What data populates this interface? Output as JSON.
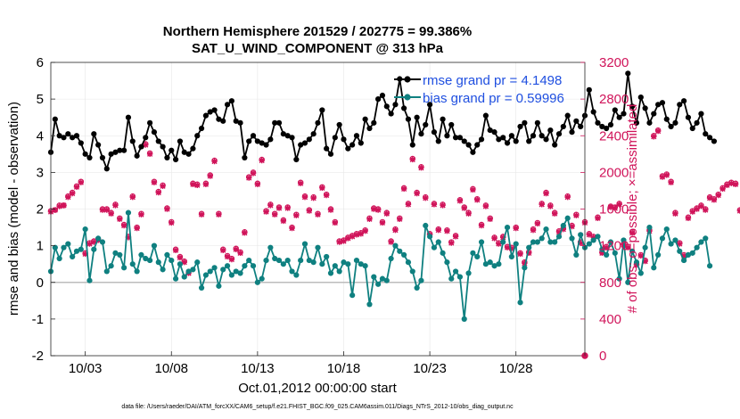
{
  "chart_data": {
    "type": "line",
    "title_line1": "Northern Hemisphere 201529 / 202775 = 99.386%",
    "title_line2": "SAT_U_WIND_COMPONENT @ 313 hPa",
    "xlabel": "Oct.01,2012 00:00:00 start",
    "ylabel_left": "rmse and bias (model - observation)",
    "ylabel_right": "# of obs: o=possible; ×=assimilated",
    "footer": "data file: /Users/raeder/DAI/ATM_forcXX/CAM6_setup/f.e21.FHIST_BGC.f09_025.CAM6assim.011/Diags_NTrS_2012-10/obs_diag_output.nc",
    "xlim": [
      1.0,
      32.0
    ],
    "ylim_left": [
      -2,
      6
    ],
    "ylim_right": [
      0,
      3200
    ],
    "x_ticks": [
      3,
      8,
      13,
      18,
      23,
      28
    ],
    "x_tick_labels": [
      "10/03",
      "10/08",
      "10/13",
      "10/18",
      "10/23",
      "10/28"
    ],
    "y_left_ticks": [
      "-2",
      "-1",
      "0",
      "1",
      "2",
      "3",
      "4",
      "5",
      "6"
    ],
    "y_right_ticks": [
      "0",
      "400",
      "800",
      "1200",
      "1600",
      "2000",
      "2400",
      "2800",
      "3200"
    ],
    "legend": {
      "rmse_label": "rmse grand pr = 4.1498",
      "bias_label": "bias grand pr = 0.59996",
      "placement": "top-right"
    },
    "colors": {
      "rmse": "#000000",
      "bias": "#0f8080",
      "obs": "#d0145a",
      "zero_line": "#bdbdbd",
      "legend_text": "#1f4fe0"
    },
    "time_step": 0.25,
    "rmse": [
      3.55,
      4.45,
      4.0,
      3.95,
      4.05,
      3.95,
      4.0,
      3.8,
      3.5,
      3.4,
      4.05,
      3.75,
      3.4,
      3.1,
      3.5,
      3.55,
      3.6,
      3.6,
      4.5,
      3.85,
      3.45,
      3.7,
      3.95,
      4.35,
      4.1,
      3.85,
      3.7,
      3.4,
      3.6,
      3.35,
      3.85,
      3.55,
      3.5,
      3.65,
      4.0,
      4.2,
      4.55,
      4.65,
      4.7,
      4.45,
      4.4,
      4.85,
      4.95,
      4.4,
      4.35,
      3.4,
      3.85,
      4.0,
      3.85,
      3.8,
      3.75,
      3.9,
      4.35,
      4.35,
      4.05,
      4.0,
      3.95,
      3.35,
      3.75,
      3.8,
      3.9,
      4.05,
      4.35,
      4.7,
      3.65,
      3.5,
      3.95,
      4.3,
      3.9,
      3.65,
      3.75,
      4.0,
      3.8,
      4.45,
      4.2,
      4.35,
      5.0,
      5.1,
      4.8,
      4.6,
      4.85,
      5.55,
      4.75,
      4.45,
      3.75,
      4.5,
      4.05,
      4.3,
      4.85,
      4.1,
      3.85,
      4.45,
      4.0,
      4.3,
      3.95,
      3.95,
      3.85,
      3.75,
      3.55,
      3.75,
      3.9,
      4.55,
      4.15,
      4.1,
      3.9,
      3.95,
      3.8,
      4.0,
      3.85,
      4.25,
      4.35,
      3.85,
      4.0,
      4.35,
      4.0,
      3.9,
      4.15,
      3.75,
      4.05,
      4.25,
      4.55,
      4.1,
      4.4,
      4.25,
      4.55,
      5.25,
      4.65,
      4.35,
      4.25,
      4.2,
      4.3,
      4.7,
      4.5,
      4.6,
      5.7,
      4.8,
      4.35,
      5.05,
      4.75,
      4.35,
      4.6,
      4.85,
      4.9,
      4.45,
      4.25,
      4.35,
      4.85,
      4.95,
      4.5,
      4.2,
      4.35,
      4.6,
      4.05,
      3.95,
      3.85
    ],
    "bias": [
      0.3,
      0.95,
      0.65,
      0.95,
      1.05,
      0.7,
      0.85,
      0.9,
      1.45,
      0.05,
      0.9,
      1.2,
      1.1,
      0.3,
      0.45,
      0.8,
      0.75,
      0.4,
      1.9,
      0.5,
      0.3,
      0.75,
      0.65,
      0.6,
      1.0,
      0.55,
      0.35,
      0.75,
      0.6,
      0.1,
      0.5,
      0.15,
      0.3,
      0.35,
      0.55,
      -0.15,
      0.2,
      0.3,
      0.4,
      -0.1,
      0.35,
      0.45,
      0.2,
      0.3,
      0.25,
      0.45,
      0.6,
      0.45,
      0.0,
      0.1,
      0.6,
      0.95,
      0.65,
      0.6,
      0.5,
      0.6,
      0.3,
      0.2,
      0.6,
      1.05,
      0.6,
      0.55,
      0.95,
      0.5,
      0.7,
      0.25,
      0.45,
      0.3,
      0.55,
      0.5,
      -0.35,
      0.6,
      0.5,
      0.45,
      -0.6,
      0.15,
      -0.05,
      0.1,
      0.05,
      0.65,
      1.0,
      0.85,
      0.75,
      0.55,
      0.3,
      -0.15,
      0.05,
      1.55,
      1.25,
      0.95,
      1.1,
      0.8,
      0.55,
      0.1,
      0.3,
      0.15,
      -1.0,
      0.25,
      0.8,
      0.7,
      1.1,
      0.5,
      0.55,
      0.45,
      0.5,
      1.1,
      1.5,
      0.7,
      1.05,
      -0.55,
      0.4,
      0.95,
      1.1,
      1.1,
      1.2,
      1.45,
      1.1,
      1.1,
      1.25,
      1.55,
      1.75,
      1.2,
      0.75,
      1.3,
      0.95,
      1.05,
      1.15,
      1.25,
      0.9,
      0.75,
      1.1,
      0.8,
      0.1,
      1.15,
      0.0,
      0.85,
      0.55,
      0.25,
      0.95,
      1.5,
      0.4,
      0.75,
      1.2,
      1.45,
      1.05,
      1.15,
      0.85,
      0.6,
      0.75,
      0.8,
      0.95,
      1.1,
      1.2,
      0.45
    ],
    "obs_possible": [
      1580,
      1590,
      1640,
      1640,
      1740,
      1780,
      1850,
      1900,
      1120,
      1230,
      1250,
      1270,
      1600,
      1600,
      1560,
      1650,
      1500,
      1430,
      1300,
      1740,
      1400,
      1550,
      2310,
      2210,
      1900,
      1790,
      1860,
      1610,
      1460,
      1160,
      1080,
      1030,
      910,
      1880,
      1870,
      1550,
      1880,
      1970,
      2130,
      1550,
      1160,
      1090,
      1060,
      1170,
      1130,
      1350,
      1950,
      2000,
      1880,
      2140,
      1580,
      1650,
      1550,
      1620,
      1480,
      1620,
      1400,
      1540,
      1890,
      1740,
      1590,
      1730,
      1550,
      1840,
      1760,
      1600,
      1460,
      1250,
      1260,
      1290,
      1310,
      1330,
      1340,
      1370,
      1500,
      1610,
      1600,
      1460,
      1560,
      1250,
      1380,
      1500,
      1830,
      1660,
      2150,
      1780,
      2060,
      1730,
      1330,
      1660,
      1380,
      1650,
      1370,
      1240,
      1310,
      1700,
      1620,
      1560,
      1820,
      1710,
      1430,
      1640,
      1500,
      1290,
      1230,
      1300,
      1190,
      1180,
      1400,
      1120,
      1020,
      1130,
      1380,
      1450,
      1660,
      1780,
      1640,
      1560,
      1360,
      1390,
      1740,
      1420,
      1540,
      1240,
      1460,
      1330,
      1300,
      1510,
      1130,
      1190,
      1630,
      1620,
      1660,
      1220,
      1190,
      1350,
      1000,
      1100,
      1040,
      1370,
      2400,
      2460,
      1960,
      1980,
      1900,
      1560,
      1230,
      1100,
      1510,
      1580,
      1610,
      1640,
      1600,
      1730,
      1710,
      1760,
      1830,
      1870,
      1890,
      1880,
      1590,
      1610,
      1660,
      1620,
      2070,
      2090,
      1730,
      1880
    ],
    "obs_assimilated": [
      1570,
      1590,
      1630,
      1640,
      1730,
      1770,
      1840,
      1890,
      1110,
      1220,
      1240,
      1260,
      1590,
      1590,
      1550,
      1640,
      1490,
      1420,
      1290,
      1730,
      1390,
      1540,
      2300,
      2200,
      1890,
      1780,
      1850,
      1600,
      1450,
      1150,
      1070,
      1020,
      900,
      1870,
      1860,
      1540,
      1870,
      1960,
      2120,
      1540,
      1150,
      1080,
      1050,
      1160,
      1120,
      1340,
      1940,
      1990,
      1870,
      2130,
      1570,
      1640,
      1540,
      1610,
      1470,
      1610,
      1390,
      1530,
      1880,
      1730,
      1580,
      1720,
      1540,
      1830,
      1750,
      1590,
      1450,
      1240,
      1250,
      1280,
      1300,
      1320,
      1330,
      1360,
      1490,
      1600,
      1590,
      1450,
      1550,
      1240,
      1370,
      1490,
      1820,
      1650,
      2140,
      1770,
      2050,
      1720,
      1320,
      1650,
      1370,
      1640,
      1360,
      1230,
      1300,
      1690,
      1610,
      1550,
      1810,
      1700,
      1420,
      1630,
      1490,
      1280,
      1220,
      1290,
      1180,
      1170,
      1390,
      1110,
      1010,
      1120,
      1370,
      1440,
      1650,
      1770,
      1630,
      1550,
      1350,
      1380,
      1730,
      1410,
      1530,
      1230,
      1450,
      1320,
      1290,
      1500,
      1120,
      1180,
      1620,
      1610,
      1650,
      1210,
      1180,
      1340,
      990,
      1090,
      1030,
      1360,
      2390,
      2450,
      1950,
      1970,
      1890,
      1550,
      1220,
      1090,
      1500,
      1570,
      1600,
      1630,
      1590,
      1720,
      1700,
      1750,
      1820,
      1860,
      1880,
      1870,
      1580,
      1600,
      1650,
      1610,
      2060,
      2080,
      1720,
      1870
    ],
    "obs_zero_label": "0"
  }
}
